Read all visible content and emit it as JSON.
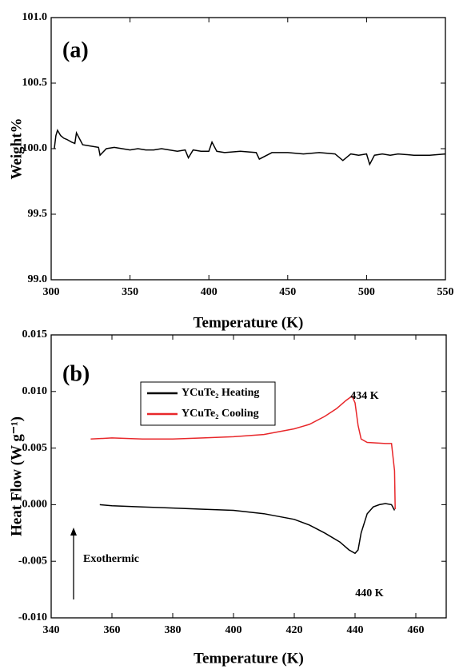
{
  "chart_data": [
    {
      "type": "line",
      "title": "(a)",
      "x_label": "Temperature (K)",
      "y_label": "Weight%",
      "color": "#000000",
      "x": [
        302,
        303,
        304,
        306,
        308,
        310,
        313,
        315,
        316,
        320,
        325,
        330,
        331,
        335,
        340,
        345,
        350,
        355,
        360,
        365,
        370,
        375,
        380,
        385,
        387,
        390,
        395,
        400,
        402,
        405,
        410,
        420,
        430,
        432,
        440,
        450,
        460,
        470,
        480,
        485,
        490,
        495,
        500,
        502,
        505,
        510,
        515,
        520,
        530,
        540,
        550
      ],
      "values": [
        100.0,
        100.1,
        100.14,
        100.1,
        100.08,
        100.07,
        100.05,
        100.04,
        100.12,
        100.03,
        100.02,
        100.01,
        99.95,
        100.0,
        100.01,
        100.0,
        99.99,
        100.0,
        99.99,
        99.99,
        100.0,
        99.99,
        99.98,
        99.99,
        99.93,
        99.99,
        99.98,
        99.98,
        100.05,
        99.98,
        99.97,
        99.98,
        99.97,
        99.92,
        99.97,
        99.97,
        99.96,
        99.97,
        99.96,
        99.91,
        99.96,
        99.95,
        99.96,
        99.88,
        99.95,
        99.96,
        99.95,
        99.96,
        99.95,
        99.95,
        99.96
      ],
      "xlim": [
        300,
        550
      ],
      "xticks": [
        300,
        350,
        400,
        450,
        500,
        550
      ],
      "ylim": [
        99.0,
        101.0
      ],
      "yticks": [
        {
          "value": 99.0,
          "label": "99.0"
        },
        {
          "value": 99.5,
          "label": "99.5"
        },
        {
          "value": 100.0,
          "label": "100.0"
        },
        {
          "value": 100.5,
          "label": "100.5"
        },
        {
          "value": 101.0,
          "label": "101.0"
        }
      ]
    },
    {
      "type": "line",
      "title": "(b)",
      "x_label": "Temperature (K)",
      "y_label": "Heat Flow (W g⁻¹)",
      "series": [
        {
          "name": "YCuTe₂ Heating",
          "color": "#000000",
          "x": [
            356,
            360,
            370,
            380,
            390,
            400,
            410,
            420,
            425,
            430,
            435,
            438,
            440,
            441,
            442,
            444,
            446,
            448,
            450,
            452,
            453
          ],
          "values": [
            0.0,
            -0.0001,
            -0.0002,
            -0.0003,
            -0.0004,
            -0.0005,
            -0.0008,
            -0.0013,
            -0.0018,
            -0.0025,
            -0.0033,
            -0.004,
            -0.0043,
            -0.004,
            -0.0025,
            -0.0008,
            -0.0002,
            0.0,
            0.0001,
            0.0,
            -0.0005
          ]
        },
        {
          "name": "YCuTe₂ Cooling",
          "color": "#e8272a",
          "x": [
            353,
            360,
            370,
            380,
            390,
            400,
            410,
            420,
            425,
            430,
            434,
            437,
            439,
            440,
            441,
            442,
            444,
            450,
            452,
            453,
            453.2
          ],
          "values": [
            0.0058,
            0.0059,
            0.0058,
            0.0058,
            0.0059,
            0.006,
            0.0062,
            0.0067,
            0.0071,
            0.0078,
            0.0085,
            0.0092,
            0.0096,
            0.009,
            0.007,
            0.0058,
            0.0055,
            0.0054,
            0.0054,
            0.003,
            -0.0004
          ]
        }
      ],
      "annotations": [
        "434 K",
        "440 K",
        "Exothermic"
      ],
      "xlim": [
        340,
        470
      ],
      "xticks": [
        340,
        360,
        380,
        400,
        420,
        440,
        460
      ],
      "ylim": [
        -0.01,
        0.015
      ],
      "yticks": [
        {
          "value": -0.01,
          "label": "-0.010"
        },
        {
          "value": -0.005,
          "label": "-0.005"
        },
        {
          "value": 0.0,
          "label": "0.000"
        },
        {
          "value": 0.005,
          "label": "0.005"
        },
        {
          "value": 0.01,
          "label": "0.010"
        },
        {
          "value": 0.015,
          "label": "0.015"
        }
      ]
    }
  ]
}
